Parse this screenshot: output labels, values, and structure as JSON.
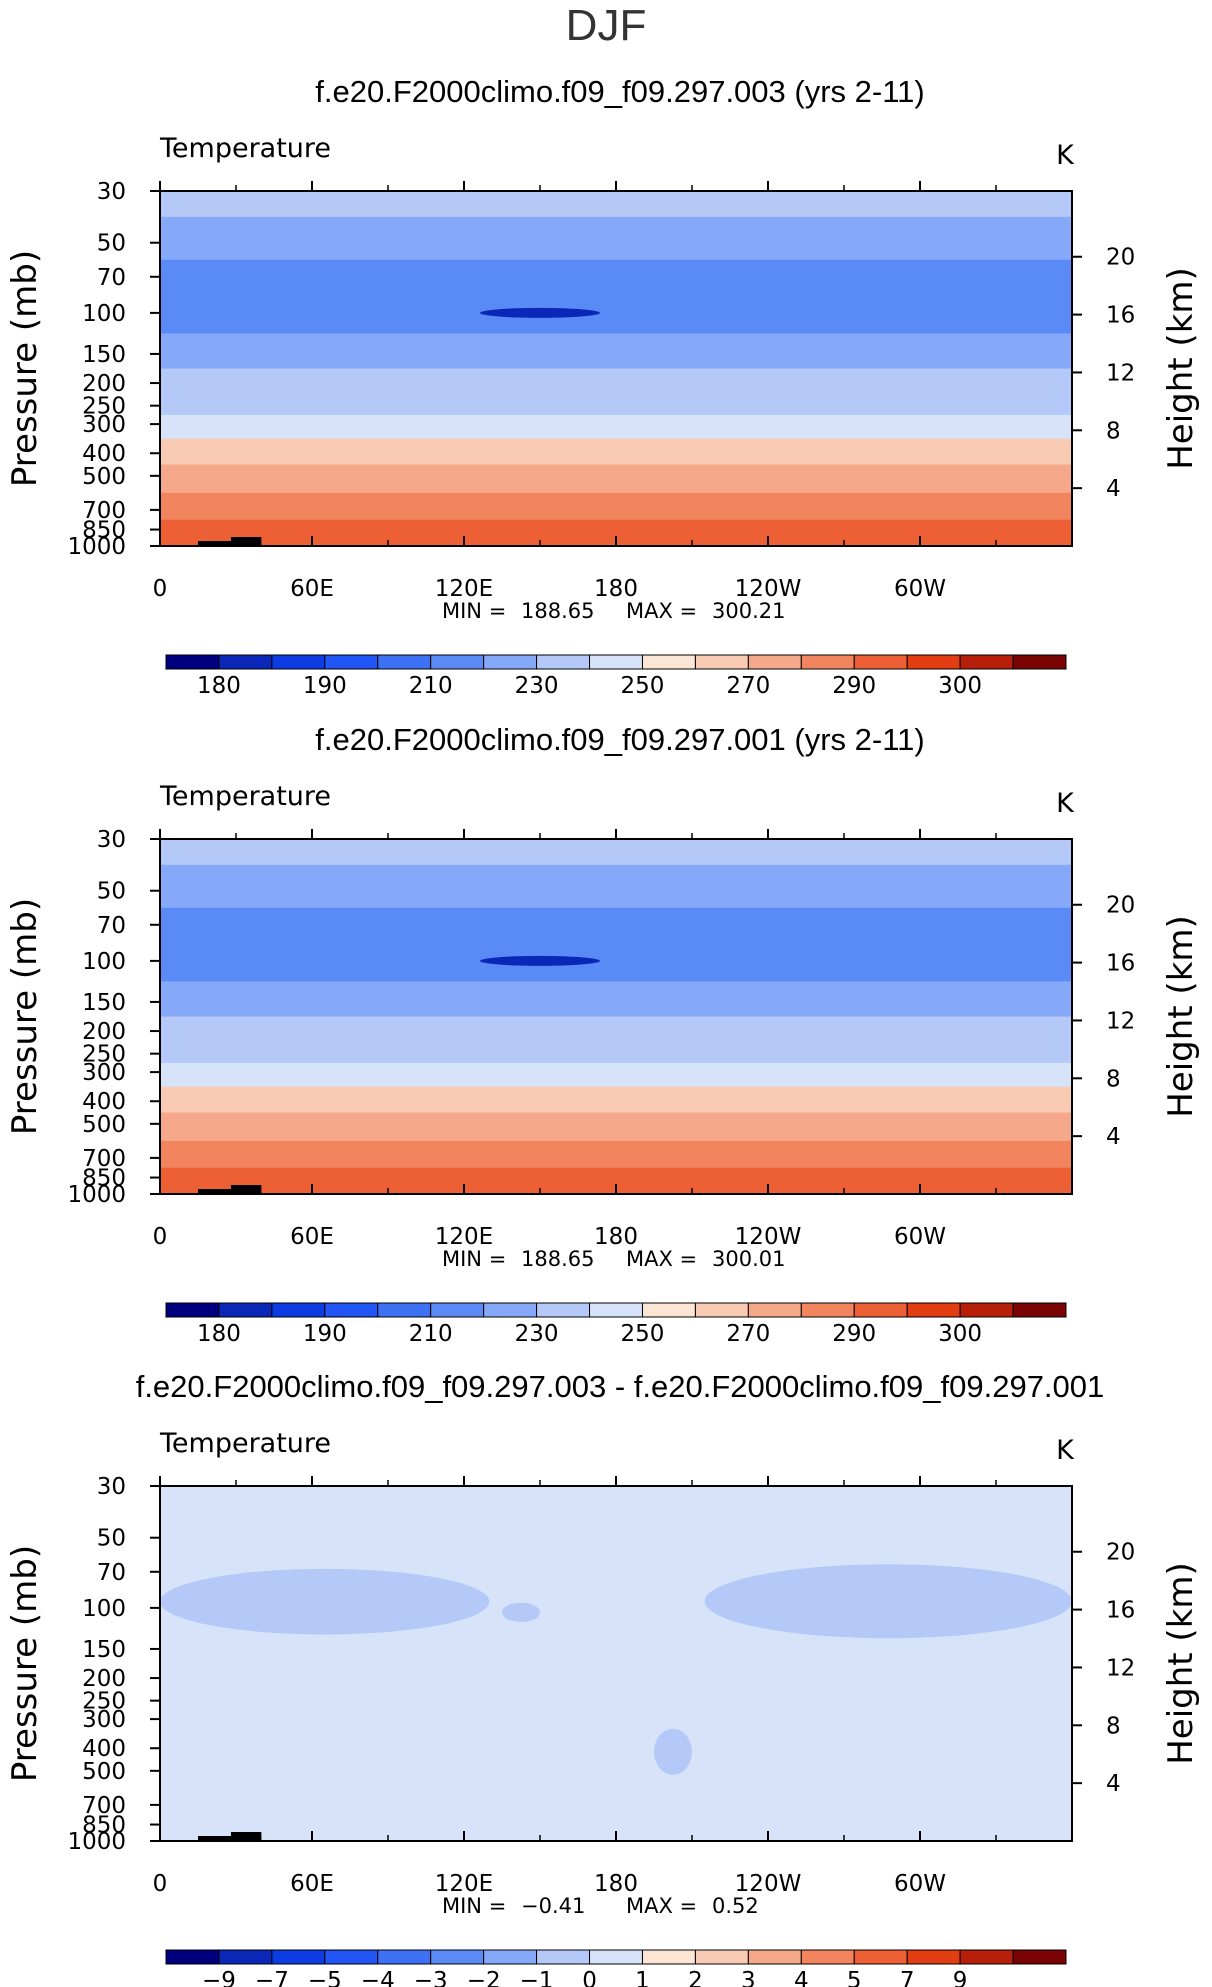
{
  "page_title": "DJF",
  "chart_data": [
    {
      "type": "heatmap",
      "title": "f.e20.F2000climo.f09_f09.297.003 (yrs 2-11)",
      "variable": "Temperature",
      "units": "K",
      "ylabel": "Pressure  (mb)",
      "y2label": "Height  (km)",
      "x_ticks": [
        "0",
        "60E",
        "120E",
        "180",
        "120W",
        "60W"
      ],
      "y_ticks": [
        "30",
        "50",
        "70",
        "100",
        "150",
        "200",
        "250",
        "300",
        "400",
        "500",
        "700",
        "850",
        "1000"
      ],
      "y2_ticks": [
        "20",
        "16",
        "12",
        "8",
        "4"
      ],
      "stats": {
        "min_label": "MIN  =",
        "min": "188.65",
        "max_label": "MAX  =",
        "max": "300.21"
      },
      "colorbar_labels": [
        "180",
        "190",
        "210",
        "230",
        "250",
        "270",
        "290",
        "300"
      ],
      "levels": [
        {
          "p": 30,
          "t": 222
        },
        {
          "p": 50,
          "t": 218
        },
        {
          "p": 70,
          "t": 208
        },
        {
          "p": 100,
          "t": 202
        },
        {
          "p": 150,
          "t": 212
        },
        {
          "p": 200,
          "t": 220
        },
        {
          "p": 250,
          "t": 227
        },
        {
          "p": 300,
          "t": 235
        },
        {
          "p": 400,
          "t": 250
        },
        {
          "p": 500,
          "t": 260
        },
        {
          "p": 700,
          "t": 275
        },
        {
          "p": 850,
          "t": 283
        },
        {
          "p": 1000,
          "t": 288
        }
      ]
    },
    {
      "type": "heatmap",
      "title": "f.e20.F2000climo.f09_f09.297.001 (yrs 2-11)",
      "variable": "Temperature",
      "units": "K",
      "ylabel": "Pressure  (mb)",
      "y2label": "Height  (km)",
      "x_ticks": [
        "0",
        "60E",
        "120E",
        "180",
        "120W",
        "60W"
      ],
      "y_ticks": [
        "30",
        "50",
        "70",
        "100",
        "150",
        "200",
        "250",
        "300",
        "400",
        "500",
        "700",
        "850",
        "1000"
      ],
      "y2_ticks": [
        "20",
        "16",
        "12",
        "8",
        "4"
      ],
      "stats": {
        "min_label": "MIN  =",
        "min": "188.65",
        "max_label": "MAX  =",
        "max": "300.01"
      },
      "colorbar_labels": [
        "180",
        "190",
        "210",
        "230",
        "250",
        "270",
        "290",
        "300"
      ],
      "levels": [
        {
          "p": 30,
          "t": 222
        },
        {
          "p": 50,
          "t": 218
        },
        {
          "p": 70,
          "t": 208
        },
        {
          "p": 100,
          "t": 202
        },
        {
          "p": 150,
          "t": 212
        },
        {
          "p": 200,
          "t": 220
        },
        {
          "p": 250,
          "t": 227
        },
        {
          "p": 300,
          "t": 235
        },
        {
          "p": 400,
          "t": 250
        },
        {
          "p": 500,
          "t": 260
        },
        {
          "p": 700,
          "t": 275
        },
        {
          "p": 850,
          "t": 283
        },
        {
          "p": 1000,
          "t": 288
        }
      ]
    },
    {
      "type": "heatmap",
      "title": "f.e20.F2000climo.f09_f09.297.003 - f.e20.F2000climo.f09_f09.297.001",
      "variable": "Temperature",
      "units": "K",
      "ylabel": "Pressure  (mb)",
      "y2label": "Height  (km)",
      "x_ticks": [
        "0",
        "60E",
        "120E",
        "180",
        "120W",
        "60W"
      ],
      "y_ticks": [
        "30",
        "50",
        "70",
        "100",
        "150",
        "200",
        "250",
        "300",
        "400",
        "500",
        "700",
        "850",
        "1000"
      ],
      "y2_ticks": [
        "20",
        "16",
        "12",
        "8",
        "4"
      ],
      "stats": {
        "min_label": "MIN  =",
        "min": "−0.41",
        "max_label": "MAX  =",
        "max": "0.52"
      },
      "colorbar_labels": [
        "−9",
        "−7",
        "−5",
        "−4",
        "−3",
        "−2",
        "−1",
        "0",
        "1",
        "2",
        "3",
        "4",
        "5",
        "7",
        "9"
      ],
      "background_value": 0.2,
      "regions_negative": [
        {
          "lon": [
            0,
            130
          ],
          "p": [
            68,
            130
          ]
        },
        {
          "lon": [
            135,
            150
          ],
          "p": [
            95,
            115
          ]
        },
        {
          "lon": [
            215,
            360
          ],
          "p": [
            65,
            135
          ]
        },
        {
          "lon": [
            195,
            210
          ],
          "p": [
            330,
            520
          ]
        }
      ]
    }
  ],
  "colors": {
    "scale": [
      "#00007e",
      "#0a27b8",
      "#0d3ce3",
      "#2255f5",
      "#3d70f2",
      "#5a8af5",
      "#85a8f8",
      "#b4c9f8",
      "#d6e3f8",
      "#fbe6d6",
      "#f9cbb5",
      "#f6a98a",
      "#f2855e",
      "#ed5f34",
      "#e23d13",
      "#b71f0a",
      "#7a0404"
    ],
    "terrain": "#000000"
  }
}
